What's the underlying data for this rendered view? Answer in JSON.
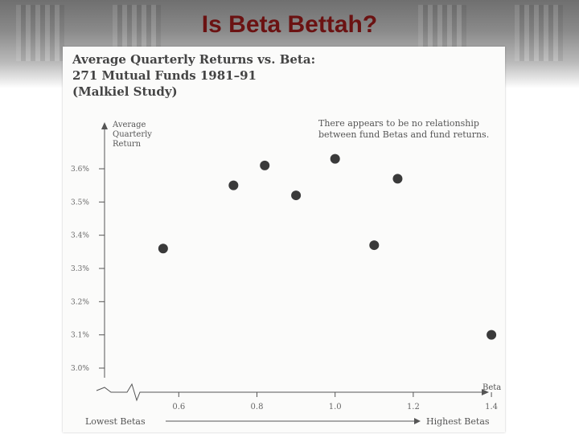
{
  "slide": {
    "title": "Is Beta Bettah?"
  },
  "chart_data": {
    "type": "scatter",
    "title_lines": [
      "Average Quarterly Returns vs. Beta:",
      "271 Mutual Funds 1981–91",
      "(Malkiel Study)"
    ],
    "ylabel_lines": [
      "Average",
      "Quarterly",
      "Return"
    ],
    "xlabel": "Beta",
    "annotation_lines": [
      "There appears to be no relationship",
      "between fund Betas and fund returns."
    ],
    "x_ticks": [
      0.6,
      0.8,
      1.0,
      1.2,
      1.4
    ],
    "x_tick_labels": [
      "0.6",
      "0.8",
      "1.0",
      "1.2",
      "1.4"
    ],
    "y_ticks": [
      3.0,
      3.1,
      3.2,
      3.3,
      3.4,
      3.5,
      3.6
    ],
    "y_tick_labels": [
      "3.0%",
      "3.1%",
      "3.2%",
      "3.3%",
      "3.4%",
      "3.5%",
      "3.6%"
    ],
    "xlim": [
      0.55,
      1.55
    ],
    "ylim": [
      3.0,
      3.6
    ],
    "points": [
      {
        "x": 0.56,
        "y": 3.36
      },
      {
        "x": 0.74,
        "y": 3.55
      },
      {
        "x": 0.82,
        "y": 3.61
      },
      {
        "x": 0.9,
        "y": 3.52
      },
      {
        "x": 1.0,
        "y": 3.63
      },
      {
        "x": 1.1,
        "y": 3.37
      },
      {
        "x": 1.16,
        "y": 3.57
      },
      {
        "x": 1.4,
        "y": 3.1
      }
    ],
    "range_labels": {
      "low": "Lowest Betas",
      "high": "Highest Betas"
    },
    "grid": false,
    "colors": {
      "point": "#3a3a3a",
      "axis": "#555555"
    }
  }
}
